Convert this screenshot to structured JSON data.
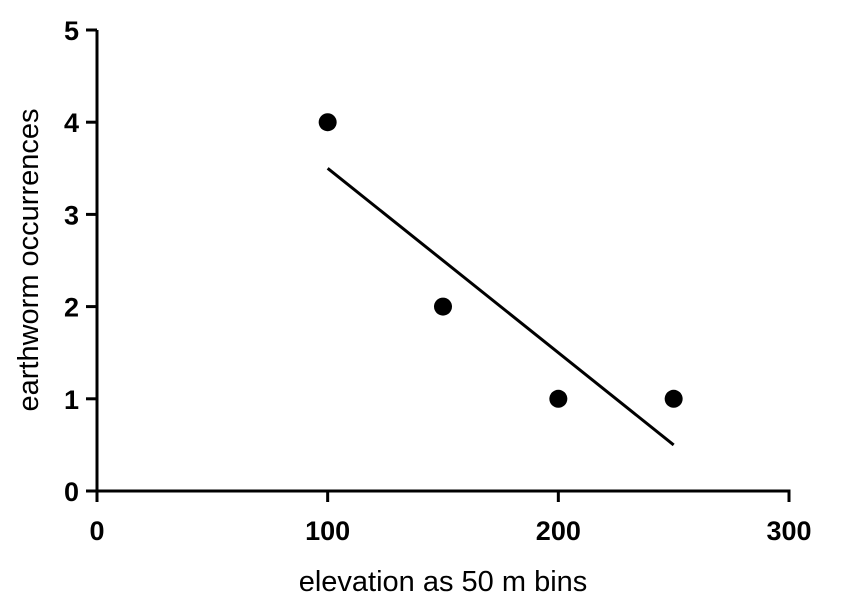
{
  "chart_data": {
    "type": "scatter",
    "title": "",
    "xlabel": "elevation as 50 m bins",
    "ylabel": "earthworm occurrences",
    "xlim": [
      0,
      300
    ],
    "ylim": [
      0,
      5
    ],
    "x_ticks": [
      0,
      100,
      200,
      300
    ],
    "y_ticks": [
      0,
      1,
      2,
      3,
      4,
      5
    ],
    "grid": false,
    "legend": "none",
    "series": [
      {
        "x": [
          100,
          150,
          200,
          250
        ],
        "y": [
          4,
          2,
          1,
          1
        ],
        "color": "#000000"
      }
    ],
    "fit_line": {
      "x": [
        100,
        250
      ],
      "y": [
        3.5,
        0.5
      ],
      "color": "#000000"
    }
  }
}
